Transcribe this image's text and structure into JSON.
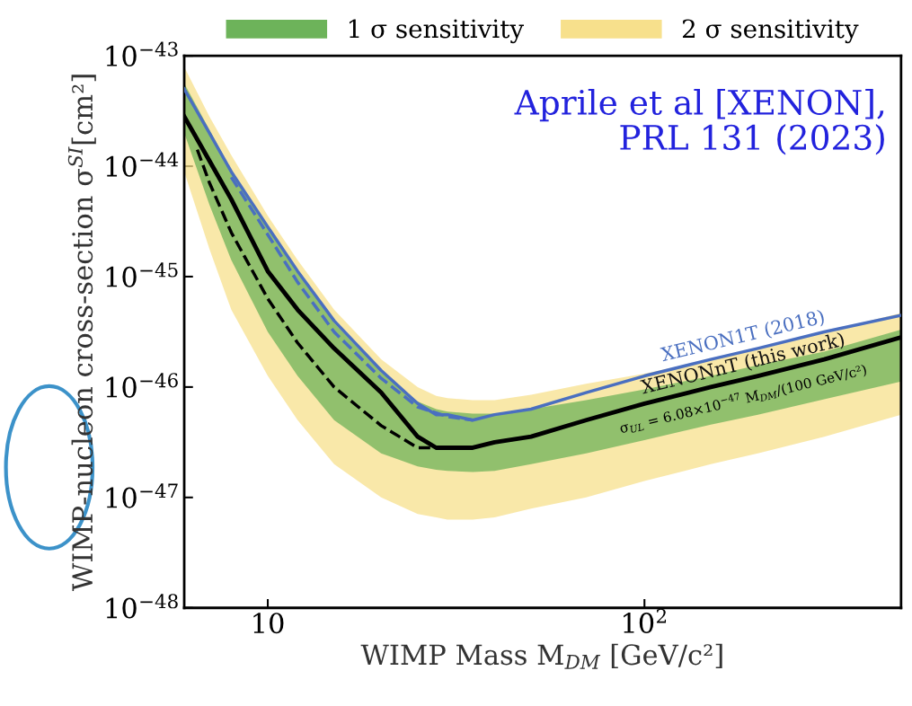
{
  "chart_data": {
    "type": "line",
    "xlabel": "WIMP Mass M$_{DM}$ [GeV/c²]",
    "ylabel": "WIMP-nucleon cross-section σ$^{SI}$[cm²]",
    "x": [
      6,
      7,
      8,
      10,
      12,
      15,
      20,
      25,
      28,
      30,
      35,
      40,
      50,
      70,
      100,
      150,
      200,
      300,
      480
    ],
    "series": [
      {
        "name": "1 σ sensitivity",
        "color": "#6db35a",
        "values": [
          null,
          null,
          null,
          null,
          null,
          null,
          null,
          null,
          null,
          null,
          null,
          null,
          null,
          null,
          null,
          null,
          null,
          null,
          null
        ],
        "lower": [
          2e-44,
          4.47e-45,
          1.41e-45,
          3.16e-46,
          1.26e-46,
          5.01e-47,
          2.51e-47,
          1.91e-47,
          1.78e-47,
          1.74e-47,
          1.7e-47,
          1.74e-47,
          2e-47,
          2.51e-47,
          3.31e-47,
          4.57e-47,
          5.62e-47,
          7.76e-47,
          1.12e-46
        ],
        "upper": [
          5.62e-44,
          2.14e-44,
          9.3e-45,
          2.82e-45,
          1.07e-45,
          3.8e-46,
          1.35e-46,
          7.4e-47,
          6.31e-47,
          6e-47,
          5.75e-47,
          5.75e-47,
          6.31e-47,
          7.6e-47,
          9.5e-47,
          1.26e-46,
          1.58e-46,
          2.09e-46,
          3.31e-46
        ]
      },
      {
        "name": "2 σ sensitivity",
        "color": "#f7e08c",
        "values": [
          null,
          null,
          null,
          null,
          null,
          null,
          null,
          null,
          null,
          null,
          null,
          null,
          null,
          null,
          null,
          null,
          null,
          null,
          null
        ],
        "lower": [
          8.91e-45,
          1.78e-45,
          5.01e-46,
          1.26e-46,
          5.01e-47,
          2e-47,
          1e-47,
          7.08e-48,
          6.6e-48,
          6.31e-48,
          6.31e-48,
          6.6e-48,
          7.94e-48,
          1e-47,
          1.41e-47,
          2e-47,
          2.51e-47,
          3.55e-47,
          5.62e-47
        ],
        "upper": [
          7.94e-44,
          2.82e-44,
          1.26e-44,
          3.55e-45,
          1.41e-45,
          5.01e-46,
          1.78e-46,
          1e-46,
          8.3e-47,
          7.94e-47,
          7.6e-47,
          7.6e-47,
          8.5e-47,
          1.07e-46,
          1.32e-46,
          1.78e-46,
          2.24e-46,
          3.16e-46,
          4.68e-46
        ]
      },
      {
        "name": "XENON1T (2018)",
        "color": "#4a6fc0",
        "values": [
          5.01e-44,
          2e-44,
          8.91e-45,
          2.82e-45,
          1.12e-45,
          3.98e-46,
          1.41e-46,
          7.08e-47,
          5.62e-47,
          5.62e-47,
          5.01e-47,
          5.62e-47,
          6.31e-47,
          8.91e-47,
          1.26e-46,
          1.78e-46,
          2.24e-46,
          3.16e-46,
          4.47e-46
        ]
      },
      {
        "line_style": "dashed",
        "color": "#4a6fc0",
        "x": [
          8,
          10,
          12,
          15,
          20,
          25,
          30,
          35
        ],
        "values": [
          7.94e-45,
          2.4e-45,
          8.91e-46,
          3.16e-46,
          1.2e-46,
          6.6e-47,
          5.4e-47,
          5.01e-47
        ]
      },
      {
        "line_style": "dashed",
        "color": "#000000",
        "x": [
          6.5,
          7,
          8,
          10,
          12,
          15,
          20,
          25,
          28
        ],
        "values": [
          1.41e-44,
          7.08e-45,
          2.51e-45,
          6.31e-46,
          2.51e-46,
          1e-46,
          4.47e-47,
          2.82e-47,
          2.82e-47
        ]
      },
      {
        "name": "XENONnT (this work)",
        "color": "#000000",
        "values": [
          2.82e-44,
          1.12e-44,
          5.01e-45,
          1.12e-45,
          5.01e-46,
          2.24e-46,
          8.91e-47,
          3.55e-47,
          2.82e-47,
          2.82e-47,
          2.82e-47,
          3.16e-47,
          3.55e-47,
          5.01e-47,
          7.08e-47,
          1e-46,
          1.26e-46,
          1.78e-46,
          2.82e-46
        ]
      }
    ],
    "log": "xy",
    "xlim": [
      6,
      480
    ],
    "xticks": [
      {
        "value": 10,
        "label": "10"
      },
      {
        "value": 100,
        "label": "10$^{2}$"
      }
    ],
    "ylim": [
      1e-48,
      1e-43
    ],
    "yticks": [
      {
        "value": 1e-48,
        "label": "10$^{−48}$"
      },
      {
        "value": 1e-47,
        "label": "10$^{−47}$"
      },
      {
        "value": 1e-46,
        "label": "10$^{−46}$"
      },
      {
        "value": 1e-45,
        "label": "10$^{−45}$"
      },
      {
        "value": 1e-44,
        "label": "10$^{−44}$"
      },
      {
        "value": 1e-43,
        "label": "10$^{−43}$"
      }
    ],
    "legend": "top",
    "annotations": [
      "Aprile et al [XENON],\nPRL 131 (2023)",
      "σ$_{UL}$ = 6.08×10$^{−47}$ M$_{DM}$/(100 GeV/c²)"
    ]
  }
}
